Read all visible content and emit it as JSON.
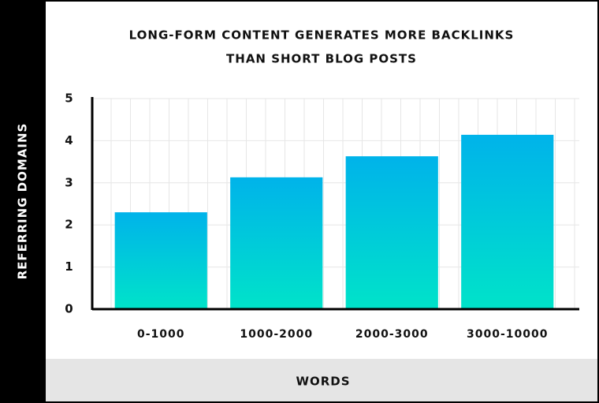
{
  "chart_data": {
    "type": "bar",
    "title": "LONG-FORM CONTENT GENERATES MORE BACKLINKS",
    "subtitle": "THAN SHORT BLOG POSTS",
    "y_label": "REFERRING DOMAINS",
    "x_label": "WORDS",
    "categories": [
      "0-1000",
      "1000-2000",
      "2000-3000",
      "3000-10000"
    ],
    "values": [
      2.3,
      3.13,
      3.63,
      4.14
    ],
    "color": [
      "#00b3ea",
      "#00e3c9"
    ],
    "ylim": [
      0,
      5
    ],
    "yticks": [
      0,
      1,
      2,
      3,
      4,
      5
    ],
    "grid": true
  }
}
